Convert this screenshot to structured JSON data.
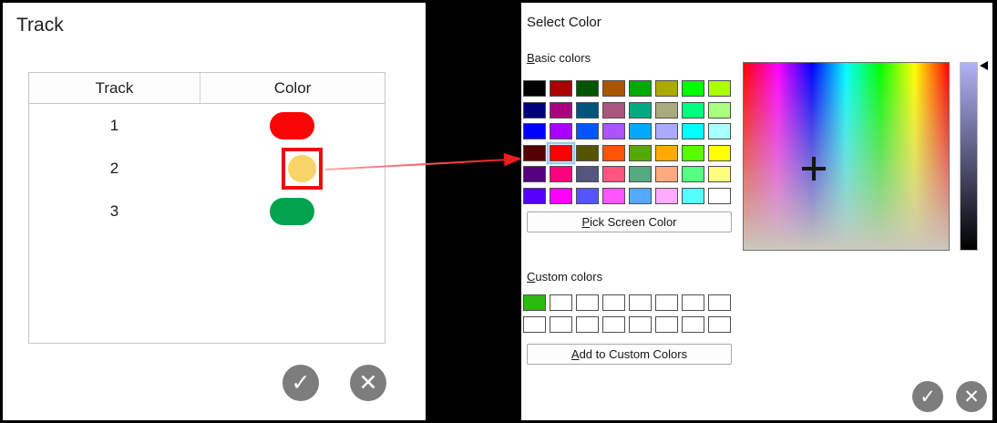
{
  "icons": {
    "check": "✓",
    "close": "✕"
  },
  "left_panel": {
    "title": "Track",
    "table": {
      "columns": [
        "Track",
        "Color"
      ],
      "rows": [
        {
          "track": "1",
          "color": "#fa0505",
          "selected": false
        },
        {
          "track": "2",
          "color": "#f9d569",
          "selected": true
        },
        {
          "track": "3",
          "color": "#00a24e",
          "selected": false
        }
      ],
      "selection_box_color": "#ea0c0c"
    }
  },
  "dialog": {
    "title": "Select Color",
    "basic_colors_label": "Basic colors",
    "basic_colors": [
      "#000000",
      "#aa0000",
      "#005500",
      "#aa5500",
      "#00aa00",
      "#aaaa00",
      "#00ff00",
      "#aaff00",
      "#00007f",
      "#aa007f",
      "#00557f",
      "#aa557f",
      "#00aa7f",
      "#aaaa7f",
      "#00ff7f",
      "#aaff7f",
      "#0000ff",
      "#aa00ff",
      "#0055ff",
      "#aa55ff",
      "#00aaff",
      "#aaaaff",
      "#00ffff",
      "#aaffff",
      "#550000",
      "#ff0000",
      "#555500",
      "#ff5500",
      "#55aa00",
      "#ffaa00",
      "#55ff00",
      "#ffff00",
      "#55007f",
      "#ff007f",
      "#55557f",
      "#ff557f",
      "#55aa7f",
      "#ffaa7f",
      "#55ff7f",
      "#ffff7f",
      "#5500ff",
      "#ff00ff",
      "#5555ff",
      "#ff55ff",
      "#55aaff",
      "#ffaaff",
      "#55ffff",
      "#ffffff"
    ],
    "selected_basic_index": 25,
    "pick_screen_color_label": "Pick Screen Color",
    "custom_colors_label": "Custom colors",
    "custom_colors": [
      "#2eb90f",
      "#ffffff",
      "#ffffff",
      "#ffffff",
      "#ffffff",
      "#ffffff",
      "#ffffff",
      "#ffffff",
      "#ffffff",
      "#ffffff",
      "#ffffff",
      "#ffffff",
      "#ffffff",
      "#ffffff",
      "#ffffff",
      "#ffffff"
    ],
    "add_custom_label": "Add to Custom Colors",
    "picker": {
      "hue_gradient": [
        "#ff0000",
        "#ff00ff",
        "#0000ff",
        "#00ffff",
        "#00ff00",
        "#ffff00",
        "#ff0000"
      ],
      "desaturate_to": "#cbc7bc",
      "value_slider": {
        "top": "#b1b1f7",
        "mid": "#58587c",
        "bottom": "#000000"
      }
    }
  },
  "annotation": {
    "arrow_color_start": "#ffaaaa",
    "arrow_color_end": "#ec1c24"
  }
}
